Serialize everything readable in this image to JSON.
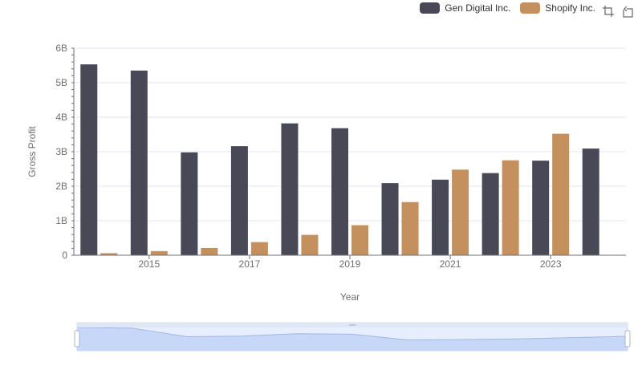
{
  "legend": {
    "items": [
      {
        "name": "Gen Digital Inc.",
        "color": "#484857"
      },
      {
        "name": "Shopify Inc.",
        "color": "#c4915e"
      }
    ]
  },
  "toolbox": {
    "zoom_icon": "zoom-icon",
    "restore_icon": "restore-icon"
  },
  "chart_data": {
    "type": "bar",
    "xlabel": "Year",
    "ylabel": "Gross Profit",
    "ylim": [
      0,
      6000000000
    ],
    "y_ticks": [
      "0",
      "1B",
      "2B",
      "3B",
      "4B",
      "5B",
      "6B"
    ],
    "categories": [
      "2014",
      "2015",
      "2016",
      "2017",
      "2018",
      "2019",
      "2020",
      "2021",
      "2022",
      "2023",
      "2024"
    ],
    "x_tick_labels": [
      "2015",
      "2017",
      "2019",
      "2021",
      "2023"
    ],
    "series": [
      {
        "name": "Gen Digital Inc.",
        "color": "#484857",
        "values": [
          5530000000,
          5350000000,
          2980000000,
          3160000000,
          3820000000,
          3680000000,
          2090000000,
          2190000000,
          2380000000,
          2740000000,
          3090000000
        ]
      },
      {
        "name": "Shopify Inc.",
        "color": "#c4915e",
        "values": [
          60000000,
          120000000,
          210000000,
          380000000,
          590000000,
          870000000,
          1540000000,
          2480000000,
          2750000000,
          3520000000,
          null
        ]
      }
    ],
    "data_zoom": {
      "start_percent": 0,
      "end_percent": 100
    }
  }
}
